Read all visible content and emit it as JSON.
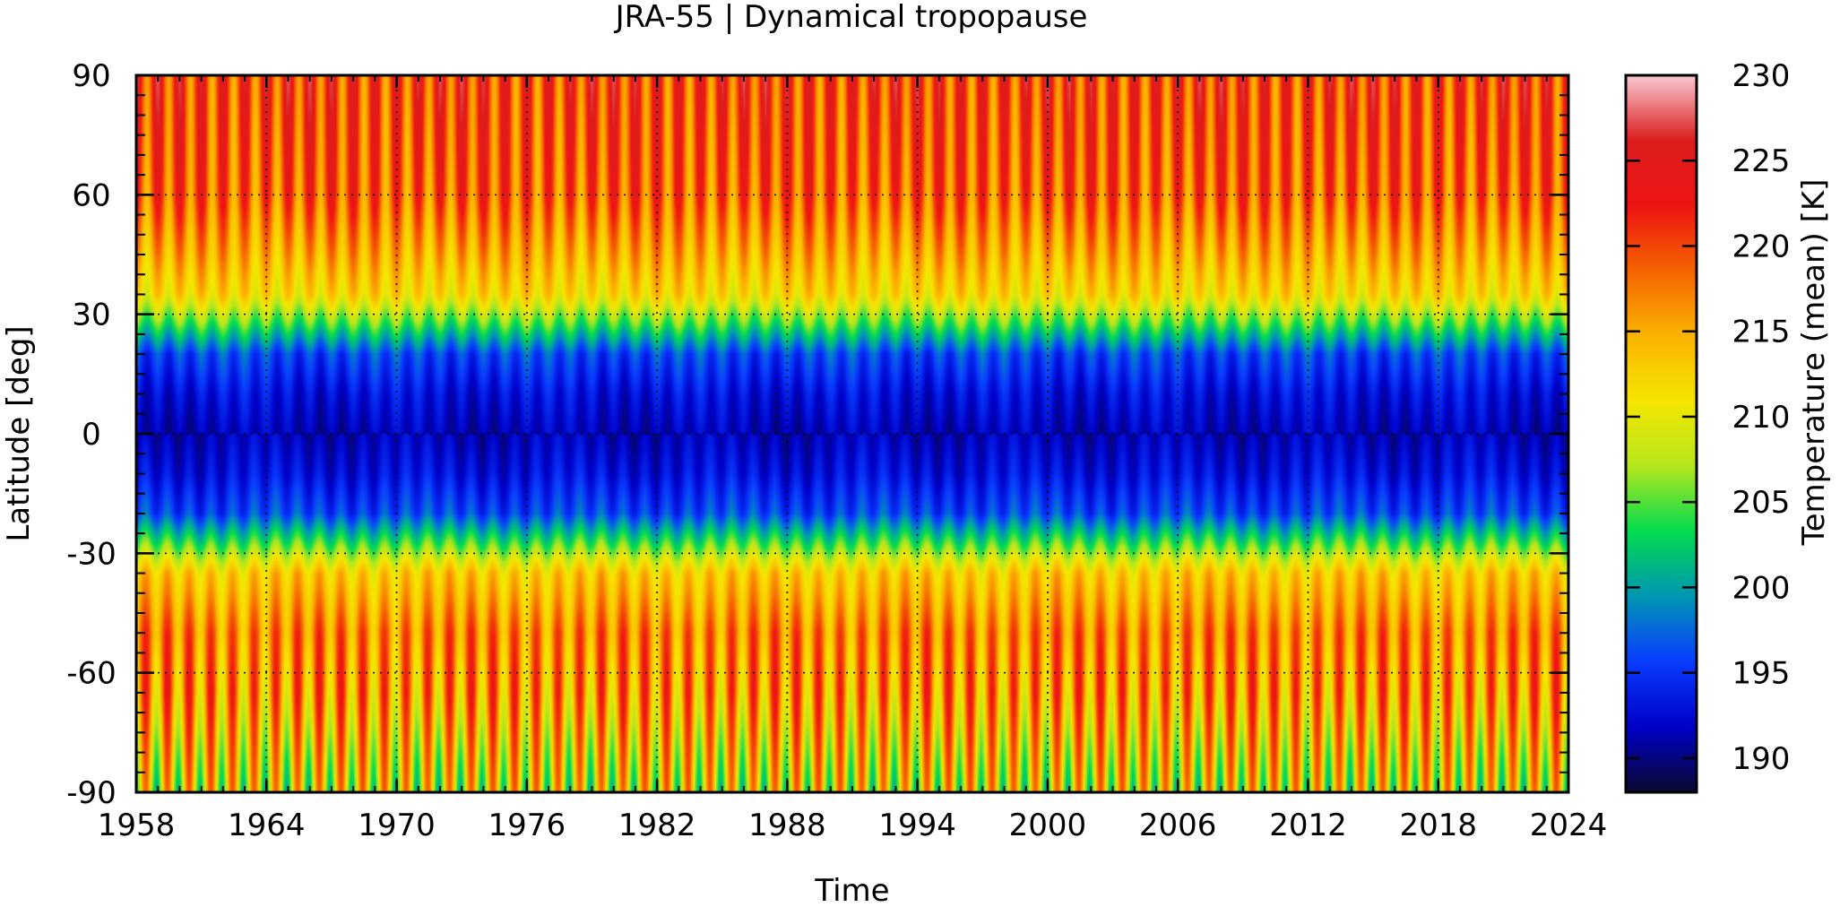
{
  "chart_data": {
    "type": "heatmap",
    "title": "JRA-55 | Dynamical tropopause",
    "xlabel": "Time",
    "ylabel": "Latitude [deg]",
    "xlim": [
      1958,
      2024
    ],
    "ylim": [
      -90,
      90
    ],
    "x_ticks": [
      "1958",
      "1964",
      "1970",
      "1976",
      "1982",
      "1988",
      "1994",
      "2000",
      "2006",
      "2012",
      "2018",
      "2024"
    ],
    "y_ticks": [
      "90",
      "60",
      "30",
      "0",
      "-30",
      "-60",
      "-90"
    ],
    "y_tick_values": [
      90,
      60,
      30,
      0,
      -30,
      -60,
      -90
    ],
    "x_tick_values": [
      1958,
      1964,
      1970,
      1976,
      1982,
      1988,
      1994,
      2000,
      2006,
      2012,
      2018,
      2024
    ],
    "grid": true,
    "colorbar": {
      "label": "Temperature (mean) [K]",
      "range": [
        188,
        230
      ],
      "ticks": [
        "230",
        "225",
        "220",
        "215",
        "210",
        "205",
        "200",
        "195",
        "190"
      ],
      "tick_values": [
        230,
        225,
        220,
        215,
        210,
        205,
        200,
        195,
        190
      ],
      "colors": [
        "#0a0a30",
        "#0000c8",
        "#0a3cff",
        "#0096b4",
        "#00dc50",
        "#b4e61e",
        "#f5e600",
        "#fab400",
        "#f56400",
        "#f01414",
        "#dc1e1e",
        "#f8c8d0"
      ]
    },
    "profile_mean": [
      {
        "lat": 90,
        "value": 221
      },
      {
        "lat": 60,
        "value": 219
      },
      {
        "lat": 45,
        "value": 215
      },
      {
        "lat": 35,
        "value": 212
      },
      {
        "lat": 28,
        "value": 205
      },
      {
        "lat": 20,
        "value": 196
      },
      {
        "lat": 10,
        "value": 193
      },
      {
        "lat": 0,
        "value": 191.5
      },
      {
        "lat": -10,
        "value": 193
      },
      {
        "lat": -20,
        "value": 196
      },
      {
        "lat": -28,
        "value": 205
      },
      {
        "lat": -35,
        "value": 213
      },
      {
        "lat": -50,
        "value": 217
      },
      {
        "lat": -65,
        "value": 216
      },
      {
        "lat": -90,
        "value": 210
      }
    ],
    "seasonal_amplitude_by_lat": [
      {
        "lat": 90,
        "amp": 6
      },
      {
        "lat": 60,
        "amp": 5
      },
      {
        "lat": 40,
        "amp": 3
      },
      {
        "lat": 0,
        "amp": 1.2
      },
      {
        "lat": -40,
        "amp": 3
      },
      {
        "lat": -65,
        "amp": 7
      },
      {
        "lat": -90,
        "amp": 9
      }
    ]
  }
}
